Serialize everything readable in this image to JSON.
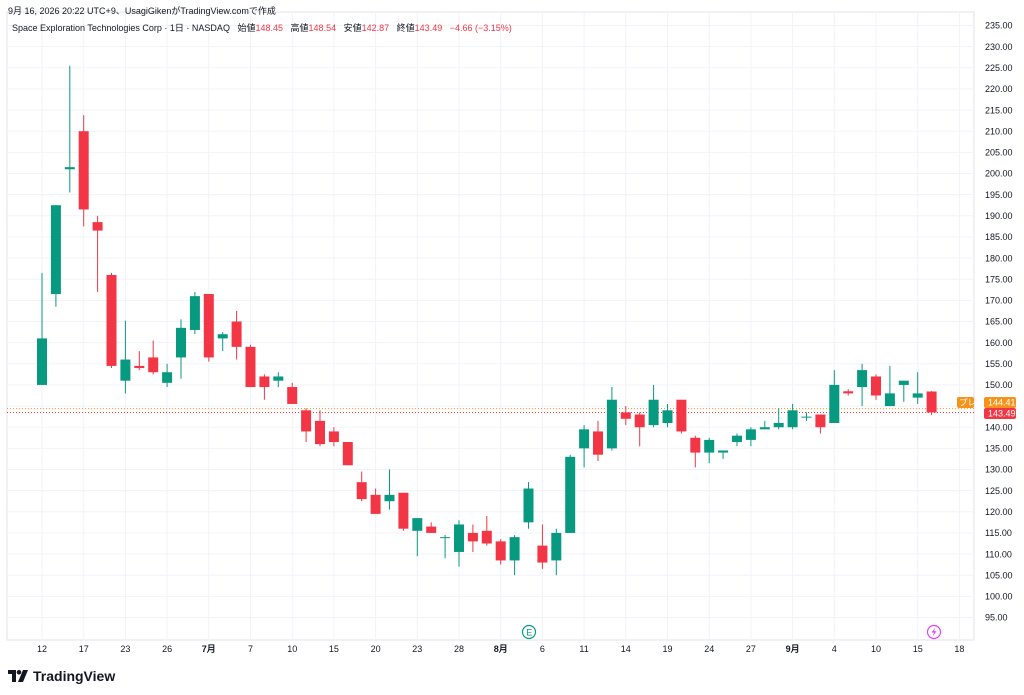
{
  "header": {
    "timestamp_line": "9月 16, 2026 20:22 UTC+9、UsagiGikenがTradingView.comで作成",
    "symbol_line": "Space Exploration Technologies Corp · 1日 · NASDAQ",
    "ohlc": [
      {
        "label": "始値",
        "value": "148.45"
      },
      {
        "label": "高値",
        "value": "148.54"
      },
      {
        "label": "安値",
        "value": "142.87"
      },
      {
        "label": "終値",
        "value": "143.49"
      },
      {
        "label": "",
        "value": "−4.66 (−3.15%)"
      }
    ]
  },
  "badges": {
    "pre_label": "プレ",
    "pre_value": "144.41",
    "last_value": "143.49"
  },
  "markers": {
    "earnings_letter": "E"
  },
  "footer": {
    "brand": "TradingView"
  },
  "colors": {
    "up": "#089981",
    "down": "#f23645",
    "pre_badge": "#f7931a",
    "last_badge": "#f23645",
    "grid": "#f0f3fa"
  },
  "chart_data": {
    "type": "candlestick",
    "y_range": [
      91,
      237
    ],
    "y_ticks": [
      "95.00",
      "100.00",
      "105.00",
      "110.00",
      "115.00",
      "120.00",
      "125.00",
      "130.00",
      "135.00",
      "140.00",
      "145.00",
      "150.00",
      "155.00",
      "160.00",
      "165.00",
      "170.00",
      "175.00",
      "180.00",
      "185.00",
      "190.00",
      "195.00",
      "200.00",
      "205.00",
      "210.00",
      "215.00",
      "220.00",
      "225.00",
      "230.00",
      "235.00"
    ],
    "x_ticks": [
      {
        "label": "12",
        "bar": 0
      },
      {
        "label": "17",
        "bar": 3
      },
      {
        "label": "23",
        "bar": 6
      },
      {
        "label": "26",
        "bar": 9
      },
      {
        "label": "7月",
        "bar": 12,
        "bold": true
      },
      {
        "label": "7",
        "bar": 15
      },
      {
        "label": "10",
        "bar": 18
      },
      {
        "label": "15",
        "bar": 21
      },
      {
        "label": "20",
        "bar": 24
      },
      {
        "label": "23",
        "bar": 27
      },
      {
        "label": "28",
        "bar": 30
      },
      {
        "label": "8月",
        "bar": 33,
        "bold": true
      },
      {
        "label": "6",
        "bar": 36
      },
      {
        "label": "11",
        "bar": 39
      },
      {
        "label": "14",
        "bar": 42
      },
      {
        "label": "19",
        "bar": 45
      },
      {
        "label": "24",
        "bar": 48
      },
      {
        "label": "27",
        "bar": 51
      },
      {
        "label": "9月",
        "bar": 54,
        "bold": true
      },
      {
        "label": "4",
        "bar": 57
      },
      {
        "label": "10",
        "bar": 60
      },
      {
        "label": "15",
        "bar": 63
      },
      {
        "label": "18",
        "bar": 66
      }
    ],
    "candles": [
      {
        "o": 150.0,
        "h": 176.5,
        "l": 150.0,
        "c": 161.0
      },
      {
        "o": 171.5,
        "h": 192.5,
        "l": 168.5,
        "c": 192.5
      },
      {
        "o": 201.0,
        "h": 225.5,
        "l": 195.5,
        "c": 201.5
      },
      {
        "o": 210.0,
        "h": 213.8,
        "l": 187.5,
        "c": 191.5
      },
      {
        "o": 188.5,
        "h": 190.0,
        "l": 172.0,
        "c": 186.5
      },
      {
        "o": 176.0,
        "h": 176.5,
        "l": 154.0,
        "c": 154.5
      },
      {
        "o": 151.0,
        "h": 165.2,
        "l": 148.0,
        "c": 156.0
      },
      {
        "o": 154.5,
        "h": 158.0,
        "l": 153.5,
        "c": 154.0
      },
      {
        "o": 156.5,
        "h": 160.5,
        "l": 152.5,
        "c": 153.0
      },
      {
        "o": 150.5,
        "h": 155.0,
        "l": 149.5,
        "c": 153.0
      },
      {
        "o": 156.5,
        "h": 165.5,
        "l": 151.5,
        "c": 163.5
      },
      {
        "o": 163.0,
        "h": 172.0,
        "l": 162.0,
        "c": 171.0
      },
      {
        "o": 171.5,
        "h": 171.5,
        "l": 155.5,
        "c": 156.5
      },
      {
        "o": 161.0,
        "h": 162.5,
        "l": 158.0,
        "c": 162.0
      },
      {
        "o": 165.0,
        "h": 167.5,
        "l": 156.0,
        "c": 159.0
      },
      {
        "o": 159.0,
        "h": 159.5,
        "l": 149.5,
        "c": 149.5
      },
      {
        "o": 152.0,
        "h": 152.5,
        "l": 146.5,
        "c": 149.5
      },
      {
        "o": 151.0,
        "h": 153.0,
        "l": 149.5,
        "c": 152.0
      },
      {
        "o": 149.5,
        "h": 150.5,
        "l": 145.5,
        "c": 145.5
      },
      {
        "o": 144.0,
        "h": 144.5,
        "l": 136.5,
        "c": 139.0
      },
      {
        "o": 141.5,
        "h": 144.0,
        "l": 135.5,
        "c": 136.0
      },
      {
        "o": 139.0,
        "h": 140.0,
        "l": 135.5,
        "c": 136.5
      },
      {
        "o": 136.5,
        "h": 136.5,
        "l": 131.0,
        "c": 131.0
      },
      {
        "o": 127.0,
        "h": 129.5,
        "l": 122.5,
        "c": 123.0
      },
      {
        "o": 124.0,
        "h": 125.5,
        "l": 119.5,
        "c": 119.5
      },
      {
        "o": 122.5,
        "h": 130.0,
        "l": 120.5,
        "c": 124.0
      },
      {
        "o": 124.5,
        "h": 124.5,
        "l": 115.5,
        "c": 116.0
      },
      {
        "o": 115.5,
        "h": 118.5,
        "l": 109.5,
        "c": 118.5
      },
      {
        "o": 116.5,
        "h": 117.5,
        "l": 115.0,
        "c": 115.0
      },
      {
        "o": 114.0,
        "h": 114.5,
        "l": 109.0,
        "c": 114.0
      },
      {
        "o": 110.5,
        "h": 118.0,
        "l": 107.0,
        "c": 117.0
      },
      {
        "o": 115.0,
        "h": 117.0,
        "l": 110.5,
        "c": 113.0
      },
      {
        "o": 115.5,
        "h": 119.0,
        "l": 112.0,
        "c": 112.5
      },
      {
        "o": 113.0,
        "h": 113.5,
        "l": 107.5,
        "c": 108.5
      },
      {
        "o": 108.5,
        "h": 114.5,
        "l": 105.0,
        "c": 114.0
      },
      {
        "o": 117.5,
        "h": 127.0,
        "l": 116.0,
        "c": 125.5
      },
      {
        "o": 112.0,
        "h": 117.0,
        "l": 106.5,
        "c": 108.0
      },
      {
        "o": 108.5,
        "h": 116.0,
        "l": 105.0,
        "c": 115.0
      },
      {
        "o": 115.0,
        "h": 133.5,
        "l": 115.0,
        "c": 133.0
      },
      {
        "o": 135.0,
        "h": 140.5,
        "l": 130.5,
        "c": 139.5
      },
      {
        "o": 139.0,
        "h": 141.5,
        "l": 132.0,
        "c": 133.5
      },
      {
        "o": 135.0,
        "h": 149.5,
        "l": 134.5,
        "c": 146.5
      },
      {
        "o": 143.5,
        "h": 145.0,
        "l": 140.5,
        "c": 142.0
      },
      {
        "o": 143.0,
        "h": 143.5,
        "l": 135.5,
        "c": 140.0
      },
      {
        "o": 140.5,
        "h": 150.0,
        "l": 140.0,
        "c": 146.5
      },
      {
        "o": 141.0,
        "h": 145.5,
        "l": 140.0,
        "c": 144.0
      },
      {
        "o": 146.5,
        "h": 146.5,
        "l": 138.5,
        "c": 139.0
      },
      {
        "o": 137.5,
        "h": 138.0,
        "l": 130.5,
        "c": 134.0
      },
      {
        "o": 134.0,
        "h": 137.5,
        "l": 131.5,
        "c": 137.0
      },
      {
        "o": 134.0,
        "h": 134.5,
        "l": 132.5,
        "c": 134.5
      },
      {
        "o": 136.5,
        "h": 138.5,
        "l": 135.5,
        "c": 138.0
      },
      {
        "o": 137.0,
        "h": 140.0,
        "l": 135.5,
        "c": 139.5
      },
      {
        "o": 139.5,
        "h": 141.5,
        "l": 139.5,
        "c": 140.0
      },
      {
        "o": 140.0,
        "h": 144.5,
        "l": 139.5,
        "c": 141.0
      },
      {
        "o": 140.0,
        "h": 145.5,
        "l": 139.5,
        "c": 144.0
      },
      {
        "o": 142.5,
        "h": 143.5,
        "l": 141.5,
        "c": 142.5
      },
      {
        "o": 143.0,
        "h": 142.5,
        "l": 138.5,
        "c": 140.0
      },
      {
        "o": 141.0,
        "h": 153.5,
        "l": 141.0,
        "c": 150.0
      },
      {
        "o": 148.5,
        "h": 149.0,
        "l": 147.5,
        "c": 148.0
      },
      {
        "o": 149.5,
        "h": 155.0,
        "l": 145.0,
        "c": 153.5
      },
      {
        "o": 152.0,
        "h": 152.5,
        "l": 146.5,
        "c": 147.5
      },
      {
        "o": 145.0,
        "h": 154.5,
        "l": 145.0,
        "c": 148.0
      },
      {
        "o": 150.0,
        "h": 151.0,
        "l": 146.0,
        "c": 151.0
      },
      {
        "o": 147.0,
        "h": 153.0,
        "l": 145.5,
        "c": 148.0
      },
      {
        "o": 148.45,
        "h": 148.54,
        "l": 142.87,
        "c": 143.49
      }
    ],
    "reference_lines": {
      "pre_market": 144.41,
      "last": 143.49
    },
    "grid": true
  }
}
